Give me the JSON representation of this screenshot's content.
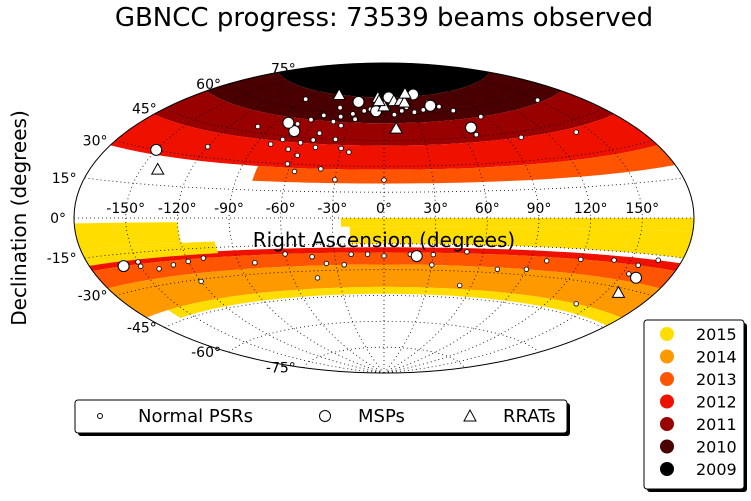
{
  "chart_data": {
    "type": "scatter",
    "projection": "aitoff",
    "title": "GBNCC progress: 73539 beams observed",
    "xlabel": "Right Ascension (degrees)",
    "ylabel": "Declination (degrees)",
    "xlim": [
      -180,
      180
    ],
    "ylim": [
      -90,
      90
    ],
    "grid": true,
    "x_ticks": [
      "-150°",
      "-120°",
      "-90°",
      "-60°",
      "-30°",
      "0°",
      "30°",
      "60°",
      "90°",
      "120°",
      "150°"
    ],
    "y_ticks": [
      "75°",
      "60°",
      "45°",
      "30°",
      "15°",
      "0°",
      "-15°",
      "-30°",
      "-45°",
      "-60°",
      "-75°"
    ],
    "coverage_years": [
      {
        "year": "2009",
        "color": "#000000",
        "regions": [
          {
            "ra": [
              -180,
              180
            ],
            "dec": [
              70,
              90
            ]
          }
        ]
      },
      {
        "year": "2010",
        "color": "#4a0000",
        "regions": [
          {
            "ra": [
              -180,
              180
            ],
            "dec": [
              55,
              70
            ]
          }
        ]
      },
      {
        "year": "2011",
        "color": "#990000",
        "regions": [
          {
            "ra": [
              -180,
              180
            ],
            "dec": [
              42,
              55
            ]
          }
        ]
      },
      {
        "year": "2012",
        "color": "#ee1100",
        "regions": [
          {
            "ra": [
              -180,
              180
            ],
            "dec": [
              28,
              42
            ]
          },
          {
            "ra": [
              -180,
              180
            ],
            "dec": [
              -20,
              -17
            ]
          }
        ]
      },
      {
        "year": "2013",
        "color": "#ff5500",
        "regions": [
          {
            "ra": [
              -80,
              180
            ],
            "dec": [
              20,
              28
            ]
          },
          {
            "ra": [
              -180,
              180
            ],
            "dec": [
              -27,
              -20
            ]
          }
        ]
      },
      {
        "year": "2014",
        "color": "#ff9900",
        "regions": [
          {
            "ra": [
              -180,
              180
            ],
            "dec": [
              -40,
              -27
            ]
          }
        ]
      },
      {
        "year": "2015",
        "color": "#ffdd00",
        "regions": [
          {
            "ra": [
              -180,
              -120
            ],
            "dec": [
              -12,
              -2
            ]
          },
          {
            "ra": [
              -180,
              -100
            ],
            "dec": [
              -18,
              -12
            ]
          },
          {
            "ra": [
              -25,
              180
            ],
            "dec": [
              -5,
              0
            ]
          },
          {
            "ra": [
              -20,
              180
            ],
            "dec": [
              -15,
              -5
            ]
          },
          {
            "ra": [
              -160,
              180
            ],
            "dec": [
              -44,
              -40
            ]
          }
        ]
      }
    ],
    "series": [
      {
        "name": "Normal PSRs",
        "marker": "circle-small",
        "points": [
          [
            -20,
            62
          ],
          [
            -14,
            63
          ],
          [
            -8,
            64
          ],
          [
            -2,
            66
          ],
          [
            4,
            63
          ],
          [
            10,
            60
          ],
          [
            18,
            62
          ],
          [
            24,
            64
          ],
          [
            30,
            61
          ],
          [
            40,
            62
          ],
          [
            50,
            66
          ],
          [
            58,
            63
          ],
          [
            68,
            60
          ],
          [
            -44,
            55
          ],
          [
            -40,
            58
          ],
          [
            -36,
            53
          ],
          [
            -30,
            60
          ],
          [
            -26,
            57
          ],
          [
            -46,
            63
          ],
          [
            -56,
            58
          ],
          [
            -64,
            55
          ],
          [
            -72,
            52
          ],
          [
            -50,
            48
          ],
          [
            -52,
            44
          ],
          [
            -48,
            40
          ],
          [
            -60,
            42
          ],
          [
            -66,
            38
          ],
          [
            -70,
            46
          ],
          [
            -74,
            43
          ],
          [
            -80,
            40
          ],
          [
            -36,
            45
          ],
          [
            -30,
            40
          ],
          [
            -24,
            38
          ],
          [
            -58,
            35
          ],
          [
            -62,
            30
          ],
          [
            -56,
            26
          ],
          [
            -40,
            28
          ],
          [
            -30,
            22
          ],
          [
            0,
            22
          ],
          [
            -120,
            35
          ],
          [
            -100,
            48
          ],
          [
            -90,
            65
          ],
          [
            70,
            46
          ],
          [
            86,
            55
          ],
          [
            100,
            42
          ],
          [
            140,
            40
          ],
          [
            150,
            56
          ],
          [
            -60,
            -20
          ],
          [
            -44,
            -22
          ],
          [
            -36,
            -26
          ],
          [
            -20,
            -21
          ],
          [
            -10,
            -21
          ],
          [
            0,
            -22
          ],
          [
            16,
            -21
          ],
          [
            30,
            -21
          ],
          [
            50,
            -19
          ],
          [
            72,
            -28
          ],
          [
            90,
            -27
          ],
          [
            120,
            -20
          ],
          [
            140,
            -19
          ],
          [
            156,
            -20
          ],
          [
            166,
            -17
          ],
          [
            100,
            -22
          ],
          [
            -110,
            -20
          ],
          [
            -120,
            -21
          ],
          [
            -130,
            -22
          ],
          [
            -140,
            -23
          ],
          [
            -150,
            -21
          ],
          [
            -120,
            -31
          ],
          [
            -80,
            -24
          ],
          [
            -44,
            -34
          ],
          [
            -25,
            -27
          ],
          [
            30,
            -27
          ],
          [
            52,
            -38
          ],
          [
            140,
            -40
          ],
          [
            154,
            -24
          ],
          [
            -150,
            -19
          ]
        ]
      },
      {
        "name": "MSPs",
        "marker": "circle-large",
        "points": [
          [
            -30,
            67
          ],
          [
            -8,
            62
          ],
          [
            6,
            70
          ],
          [
            40,
            71
          ],
          [
            50,
            64
          ],
          [
            -70,
            48
          ],
          [
            -80,
            52
          ],
          [
            70,
            50
          ],
          [
            -150,
            30
          ],
          [
            -160,
            -20
          ],
          [
            20,
            -22
          ],
          [
            160,
            -25
          ]
        ]
      },
      {
        "name": "RRATs",
        "marker": "triangle",
        "points": [
          [
            -60,
            70
          ],
          [
            -8,
            70
          ],
          [
            0,
            65
          ],
          [
            -6,
            68
          ],
          [
            12,
            68
          ],
          [
            20,
            68
          ],
          [
            24,
            67
          ],
          [
            10,
            52
          ],
          [
            -140,
            22
          ],
          [
            158,
            -32
          ],
          [
            30,
            72
          ]
        ]
      }
    ]
  },
  "legend_markers": {
    "items": [
      "Normal PSRs",
      "MSPs",
      "RRATs"
    ],
    "placement": "bottom-left"
  },
  "legend_years": {
    "items": [
      {
        "label": "2015",
        "color": "#ffdd00"
      },
      {
        "label": "2014",
        "color": "#ff9900"
      },
      {
        "label": "2013",
        "color": "#ff5500"
      },
      {
        "label": "2012",
        "color": "#ee1100"
      },
      {
        "label": "2011",
        "color": "#990000"
      },
      {
        "label": "2010",
        "color": "#4a0000"
      },
      {
        "label": "2009",
        "color": "#000000"
      }
    ],
    "placement": "bottom-right"
  }
}
